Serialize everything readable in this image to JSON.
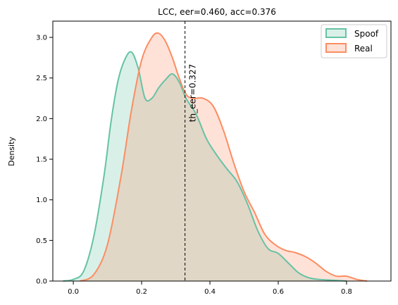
{
  "chart_data": {
    "type": "area",
    "title": "LCC, eer=0.460, acc=0.376",
    "xlabel": "",
    "ylabel": "Density",
    "xlim": [
      -0.06,
      0.93
    ],
    "ylim": [
      0,
      3.2
    ],
    "x_ticks": [
      0.0,
      0.2,
      0.4,
      0.6,
      0.8
    ],
    "x_tick_labels": [
      "0.0",
      "0.2",
      "0.4",
      "0.6",
      "0.8"
    ],
    "y_ticks": [
      0.0,
      0.5,
      1.0,
      1.5,
      2.0,
      2.5,
      3.0
    ],
    "y_tick_labels": [
      "0.0",
      "0.5",
      "1.0",
      "1.5",
      "2.0",
      "2.5",
      "3.0"
    ],
    "grid": false,
    "legend_position": "top-right",
    "series": [
      {
        "name": "Spoof",
        "color": "#66c2a5",
        "x": [
          -0.03,
          0.0,
          0.03,
          0.06,
          0.09,
          0.11,
          0.13,
          0.15,
          0.17,
          0.19,
          0.21,
          0.23,
          0.25,
          0.27,
          0.29,
          0.31,
          0.33,
          0.36,
          0.39,
          0.42,
          0.45,
          0.48,
          0.51,
          0.54,
          0.57,
          0.6,
          0.63,
          0.66,
          0.69,
          0.72,
          0.76,
          0.8
        ],
        "values": [
          0.0,
          0.02,
          0.12,
          0.55,
          1.3,
          1.95,
          2.45,
          2.72,
          2.82,
          2.62,
          2.25,
          2.25,
          2.38,
          2.48,
          2.55,
          2.45,
          2.25,
          2.05,
          1.75,
          1.55,
          1.38,
          1.22,
          0.95,
          0.62,
          0.4,
          0.34,
          0.22,
          0.1,
          0.04,
          0.02,
          0.01,
          0.0
        ]
      },
      {
        "name": "Real",
        "color": "#fc8d62",
        "x": [
          0.02,
          0.06,
          0.1,
          0.14,
          0.17,
          0.2,
          0.23,
          0.25,
          0.27,
          0.29,
          0.31,
          0.33,
          0.35,
          0.38,
          0.41,
          0.44,
          0.47,
          0.5,
          0.53,
          0.56,
          0.59,
          0.62,
          0.65,
          0.68,
          0.71,
          0.74,
          0.77,
          0.8,
          0.83,
          0.86
        ],
        "values": [
          0.0,
          0.08,
          0.45,
          1.3,
          2.1,
          2.72,
          3.0,
          3.05,
          2.95,
          2.75,
          2.5,
          2.3,
          2.25,
          2.25,
          2.15,
          1.85,
          1.45,
          1.1,
          0.85,
          0.58,
          0.45,
          0.38,
          0.35,
          0.3,
          0.22,
          0.12,
          0.06,
          0.06,
          0.02,
          0.0
        ]
      }
    ],
    "vline": {
      "x": 0.327,
      "label": "th_eer=0.327",
      "style": "dashed"
    }
  }
}
